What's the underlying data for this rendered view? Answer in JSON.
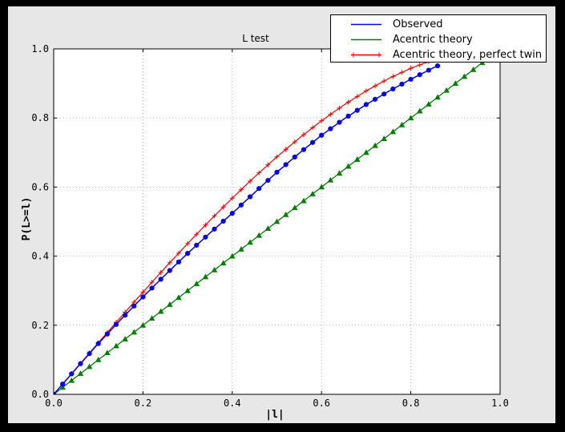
{
  "colors": {
    "frame": "#000000",
    "figure_bg": "#e7e7e7",
    "plot_bg": "#ffffff",
    "grid": "#bbbbbb",
    "axis": "#000000"
  },
  "chart_data": {
    "type": "line",
    "title": "L test",
    "xlabel": "|l|",
    "ylabel": "P(L>=l)",
    "xlim": [
      0,
      1
    ],
    "ylim": [
      0,
      1
    ],
    "xtick_labels": [
      "0.0",
      "0.2",
      "0.4",
      "0.6",
      "0.8",
      "1.0"
    ],
    "ytick_labels": [
      "0.0",
      "0.2",
      "0.4",
      "0.6",
      "0.8",
      "1.0"
    ],
    "grid": "dotted",
    "legend_position": "upper right",
    "series": [
      {
        "name": "Observed",
        "color": "#0000ff",
        "marker": "circle",
        "marker_step": 0.02,
        "legend_markers": false,
        "x": [
          0,
          0.05,
          0.1,
          0.15,
          0.2,
          0.25,
          0.3,
          0.35,
          0.4,
          0.45,
          0.5,
          0.55,
          0.6,
          0.65,
          0.7,
          0.75,
          0.8,
          0.85,
          0.86
        ],
        "y": [
          0,
          0.074,
          0.147,
          0.216,
          0.282,
          0.346,
          0.408,
          0.467,
          0.524,
          0.584,
          0.643,
          0.698,
          0.75,
          0.797,
          0.839,
          0.877,
          0.912,
          0.945,
          0.951
        ]
      },
      {
        "name": "Acentric theory",
        "color": "#007f00",
        "marker": "triangle",
        "marker_step": 0.02,
        "legend_markers": false,
        "x": [
          0,
          0.05,
          0.1,
          0.15,
          0.2,
          0.25,
          0.3,
          0.35,
          0.4,
          0.45,
          0.5,
          0.55,
          0.6,
          0.65,
          0.7,
          0.75,
          0.8,
          0.85,
          0.9,
          0.95,
          1.0
        ],
        "y": [
          0,
          0.05,
          0.1,
          0.15,
          0.2,
          0.25,
          0.3,
          0.35,
          0.4,
          0.45,
          0.5,
          0.55,
          0.6,
          0.65,
          0.7,
          0.75,
          0.8,
          0.85,
          0.9,
          0.95,
          1.0
        ]
      },
      {
        "name": "Acentric theory, perfect twin",
        "color": "#ff0000",
        "marker": "plus",
        "marker_step": 0.02,
        "legend_markers": true,
        "x": [
          0,
          0.05,
          0.1,
          0.15,
          0.2,
          0.25,
          0.3,
          0.35,
          0.4,
          0.45,
          0.5,
          0.55,
          0.6,
          0.65,
          0.7,
          0.75,
          0.8,
          0.85,
          0.9,
          0.95,
          1.0
        ],
        "y": [
          0,
          0.0749,
          0.1495,
          0.2233,
          0.296,
          0.3672,
          0.4365,
          0.5036,
          0.568,
          0.6295,
          0.6875,
          0.7418,
          0.792,
          0.8377,
          0.8785,
          0.9141,
          0.944,
          0.9679,
          0.9855,
          0.9927,
          1.0
        ]
      }
    ]
  }
}
